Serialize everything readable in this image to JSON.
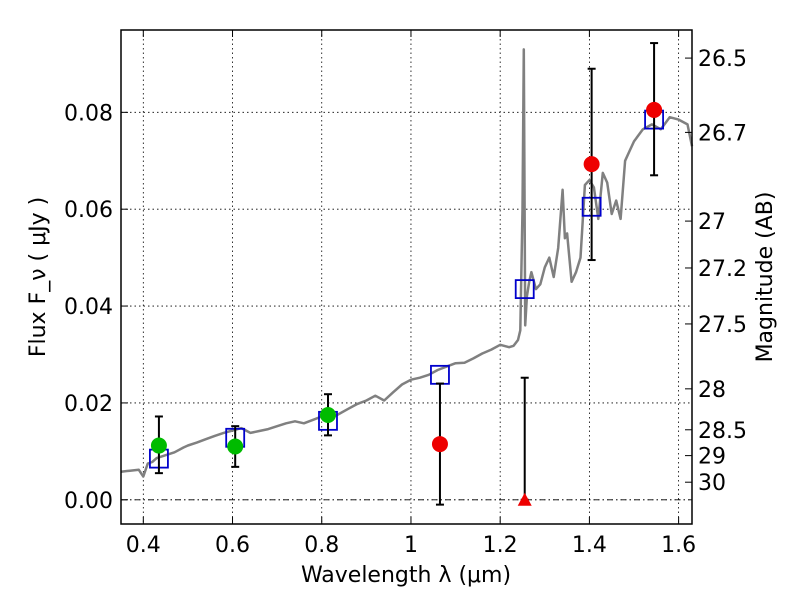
{
  "chart_data": {
    "type": "scatter",
    "xlabel": "Wavelength  λ (μm)",
    "ylabel_left": "Flux  F_ν  ( μJy )",
    "ylabel_right": "Magnitude (AB)",
    "xlim": [
      0.35,
      1.63
    ],
    "ylim": [
      -0.005,
      0.097
    ],
    "grid": true,
    "x_ticks": [
      {
        "value": 0.4,
        "label": "0.4"
      },
      {
        "value": 0.6,
        "label": "0.6"
      },
      {
        "value": 0.8,
        "label": "0.8"
      },
      {
        "value": 1.0,
        "label": "1"
      },
      {
        "value": 1.2,
        "label": "1.2"
      },
      {
        "value": 1.4,
        "label": "1.4"
      },
      {
        "value": 1.6,
        "label": "1.6"
      }
    ],
    "y_ticks": [
      {
        "value": 0.0,
        "label": "0.00"
      },
      {
        "value": 0.02,
        "label": "0.02"
      },
      {
        "value": 0.04,
        "label": "0.04"
      },
      {
        "value": 0.06,
        "label": "0.06"
      },
      {
        "value": 0.08,
        "label": "0.08"
      }
    ],
    "mag_ticks": [
      {
        "value": 26.5,
        "label": "26.5"
      },
      {
        "value": 26.7,
        "label": "26.7"
      },
      {
        "value": 27.0,
        "label": "27"
      },
      {
        "value": 27.2,
        "label": "27.2"
      },
      {
        "value": 27.5,
        "label": "27.5"
      },
      {
        "value": 28.0,
        "label": "28"
      },
      {
        "value": 28.5,
        "label": "28.5"
      },
      {
        "value": 29.0,
        "label": "29"
      },
      {
        "value": 30.0,
        "label": "30"
      }
    ],
    "colors": {
      "model": "#808080",
      "model_points": "#0000cc",
      "optical": "#00bb00",
      "nir": "#ee0000",
      "errorbar": "#000000"
    },
    "model_spectrum": {
      "x": [
        0.35,
        0.37,
        0.39,
        0.4,
        0.41,
        0.42,
        0.43,
        0.45,
        0.47,
        0.49,
        0.5,
        0.52,
        0.54,
        0.56,
        0.58,
        0.6,
        0.62,
        0.64,
        0.66,
        0.68,
        0.7,
        0.72,
        0.74,
        0.76,
        0.78,
        0.8,
        0.82,
        0.84,
        0.86,
        0.88,
        0.9,
        0.92,
        0.94,
        0.96,
        0.98,
        1.0,
        1.02,
        1.04,
        1.06,
        1.08,
        1.1,
        1.12,
        1.14,
        1.16,
        1.18,
        1.2,
        1.22,
        1.23,
        1.24,
        1.245,
        1.25,
        1.253,
        1.256,
        1.26,
        1.265,
        1.27,
        1.28,
        1.29,
        1.3,
        1.31,
        1.32,
        1.33,
        1.34,
        1.345,
        1.35,
        1.36,
        1.37,
        1.38,
        1.39,
        1.4,
        1.41,
        1.42,
        1.43,
        1.44,
        1.45,
        1.46,
        1.47,
        1.48,
        1.49,
        1.5,
        1.52,
        1.54,
        1.56,
        1.58,
        1.6,
        1.62,
        1.63
      ],
      "y": [
        0.0058,
        0.006,
        0.0062,
        0.0048,
        0.0075,
        0.0078,
        0.0086,
        0.0092,
        0.0098,
        0.0108,
        0.0112,
        0.0118,
        0.0125,
        0.0132,
        0.0138,
        0.0143,
        0.0148,
        0.0138,
        0.0142,
        0.0146,
        0.0152,
        0.0158,
        0.0162,
        0.0158,
        0.0165,
        0.0172,
        0.0168,
        0.0178,
        0.0188,
        0.0198,
        0.0205,
        0.0215,
        0.0205,
        0.0222,
        0.0238,
        0.0248,
        0.0252,
        0.0258,
        0.0268,
        0.0275,
        0.0282,
        0.0283,
        0.0292,
        0.0302,
        0.031,
        0.032,
        0.0315,
        0.0318,
        0.033,
        0.035,
        0.06,
        0.093,
        0.036,
        0.042,
        0.045,
        0.047,
        0.0435,
        0.0445,
        0.048,
        0.05,
        0.046,
        0.052,
        0.064,
        0.054,
        0.055,
        0.045,
        0.047,
        0.05,
        0.065,
        0.066,
        0.0645,
        0.058,
        0.0675,
        0.0655,
        0.059,
        0.0618,
        0.058,
        0.07,
        0.072,
        0.074,
        0.0765,
        0.0775,
        0.0765,
        0.079,
        0.0785,
        0.0775,
        0.073
      ]
    },
    "model_points": [
      {
        "x": 0.435,
        "y": 0.0085
      },
      {
        "x": 0.606,
        "y": 0.0128
      },
      {
        "x": 0.814,
        "y": 0.0163
      },
      {
        "x": 1.065,
        "y": 0.0258
      },
      {
        "x": 1.255,
        "y": 0.0435
      },
      {
        "x": 1.405,
        "y": 0.0605
      },
      {
        "x": 1.545,
        "y": 0.0785
      }
    ],
    "series": [
      {
        "color_key": "optical",
        "marker": "circle",
        "points": [
          {
            "x": 0.435,
            "y": 0.0112,
            "ylo": 0.0055,
            "yhi": 0.0172
          },
          {
            "x": 0.606,
            "y": 0.011,
            "ylo": 0.0068,
            "yhi": 0.0152
          },
          {
            "x": 0.814,
            "y": 0.0175,
            "ylo": 0.0133,
            "yhi": 0.0218
          }
        ]
      },
      {
        "color_key": "nir",
        "marker": "circle",
        "points": [
          {
            "x": 1.065,
            "y": 0.0115,
            "ylo": -0.001,
            "yhi": 0.024
          },
          {
            "x": 1.405,
            "y": 0.0693,
            "ylo": 0.0495,
            "yhi": 0.089
          },
          {
            "x": 1.545,
            "y": 0.0805,
            "ylo": 0.067,
            "yhi": 0.0943
          }
        ]
      },
      {
        "color_key": "nir",
        "marker": "triangle",
        "points": [
          {
            "x": 1.255,
            "y": 0.0,
            "ylo": 0.0,
            "yhi": 0.0252
          }
        ]
      }
    ]
  }
}
